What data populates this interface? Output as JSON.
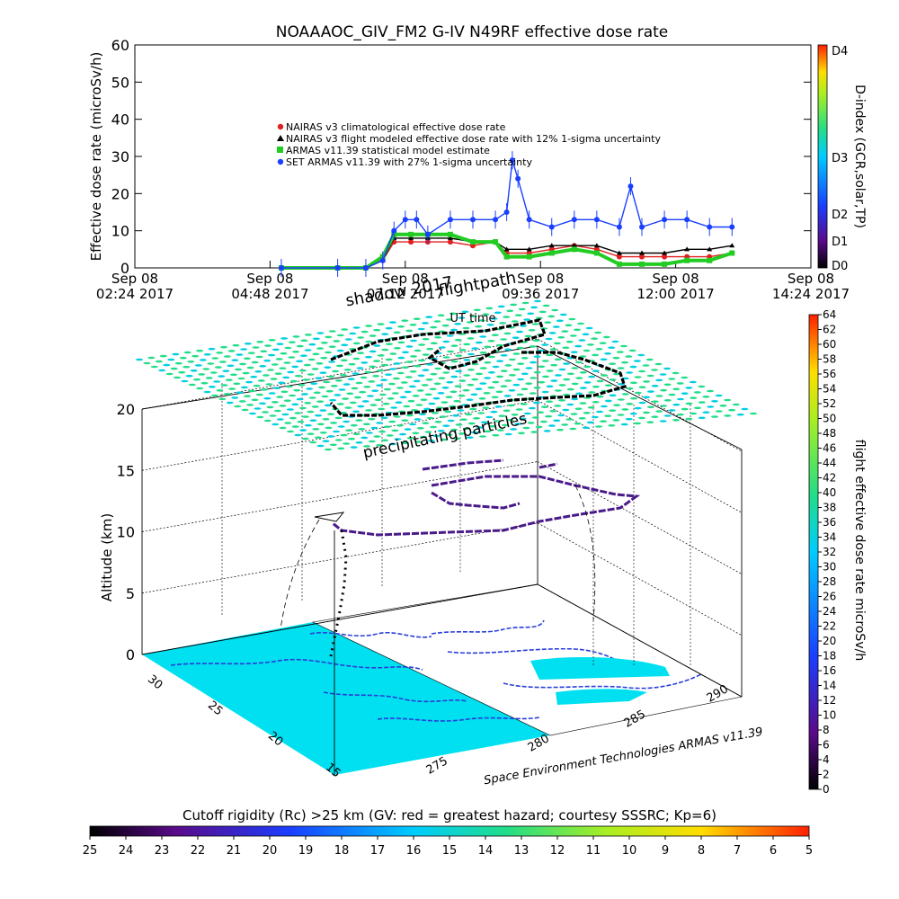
{
  "top_chart": {
    "title": "NOAAAOC_GIV_FM2 G-IV    N49RF  effective dose rate",
    "ylabel": "Effective dose rate (microSv/h)",
    "yticks": [
      "0",
      "10",
      "20",
      "30",
      "40",
      "50",
      "60"
    ],
    "ylim": [
      0,
      60
    ],
    "xticks": [
      {
        "line1": "Sep 08",
        "line2": "02:24 2017"
      },
      {
        "line1": "Sep 08",
        "line2": "04:48 2017"
      },
      {
        "line1": "Sep 08",
        "line2": "07:12 2017"
      },
      {
        "line1": "Sep 08",
        "line2": "09:36 2017"
      },
      {
        "line1": "Sep 08",
        "line2": "12:00 2017"
      },
      {
        "line1": "Sep 08",
        "line2": "14:24 2017"
      }
    ],
    "xlim_hours": [
      2.4,
      14.4
    ],
    "legend": [
      {
        "label": "NAIRAS v3 climatological effective dose rate",
        "color": "#e02020",
        "marker": "circle"
      },
      {
        "label": "NAIRAS v3 flight modeled effective dose rate with 12% 1-sigma uncertainty",
        "color": "#000000",
        "marker": "triangle"
      },
      {
        "label": "ARMAS v11.39 statistical model estimate",
        "color": "#22cc22",
        "marker": "square"
      },
      {
        "label": "SET ARMAS v11.39 with 27% 1-sigma uncertainty",
        "color": "#1a3fff",
        "marker": "circle"
      }
    ],
    "right_colorbar": {
      "label": "D-index (GCR,solar,TP)",
      "ticks": [
        "D4",
        "D3",
        "D2",
        "D1",
        "D0"
      ]
    },
    "annotations": {
      "shadow": "shadow 2017",
      "flightpath": "flightpath",
      "ut_time": "UT time"
    }
  },
  "chart_data": [
    {
      "type": "scatter",
      "title": "NOAAAOC_GIV_FM2 G-IV    N49RF  effective dose rate",
      "xlabel": "",
      "ylabel": "Effective dose rate (microSv/h)",
      "x_unit": "UT hours on Sep 08 2017",
      "ylim": [
        0,
        60
      ],
      "series": [
        {
          "name": "NAIRAS v3 climatological effective dose rate",
          "x": [
            5.0,
            6.0,
            6.5,
            6.8,
            7.0,
            7.3,
            7.6,
            8.0,
            8.4,
            8.8,
            9.0,
            9.4,
            9.8,
            10.2,
            10.6,
            11.0,
            11.4,
            11.8,
            12.2,
            12.6,
            13.0
          ],
          "y": [
            0,
            0,
            0,
            2,
            7,
            7,
            7,
            7,
            6,
            7,
            4,
            4,
            5,
            6,
            5,
            3,
            3,
            3,
            3,
            3,
            4
          ]
        },
        {
          "name": "NAIRAS v3 flight modeled effective dose rate with 12% 1-sigma uncertainty",
          "x": [
            5.0,
            6.0,
            6.5,
            6.8,
            7.0,
            7.3,
            7.6,
            8.0,
            8.4,
            8.8,
            9.0,
            9.4,
            9.8,
            10.2,
            10.6,
            11.0,
            11.4,
            11.8,
            12.2,
            12.6,
            13.0
          ],
          "y": [
            0,
            0,
            0,
            2,
            8,
            8,
            8,
            8,
            7,
            7,
            5,
            5,
            6,
            6,
            6,
            4,
            4,
            4,
            5,
            5,
            6
          ]
        },
        {
          "name": "ARMAS v11.39 statistical model estimate",
          "x": [
            5.0,
            6.0,
            6.5,
            6.8,
            7.0,
            7.3,
            7.6,
            8.0,
            8.4,
            8.8,
            9.0,
            9.4,
            9.8,
            10.2,
            10.6,
            11.0,
            11.4,
            11.8,
            12.2,
            12.6,
            13.0
          ],
          "y": [
            0,
            0,
            0,
            3,
            9,
            9,
            9,
            9,
            7,
            7,
            3,
            3,
            4,
            5,
            4,
            1,
            1,
            1,
            2,
            2,
            4
          ]
        },
        {
          "name": "SET ARMAS v11.39 with 27% 1-sigma uncertainty",
          "x": [
            5.0,
            6.0,
            6.5,
            6.8,
            7.0,
            7.2,
            7.4,
            7.6,
            8.0,
            8.4,
            8.8,
            9.0,
            9.1,
            9.2,
            9.4,
            9.8,
            10.2,
            10.6,
            11.0,
            11.2,
            11.4,
            11.8,
            12.2,
            12.6,
            13.0
          ],
          "y": [
            0,
            0,
            0,
            2,
            10,
            13,
            13,
            9,
            13,
            13,
            13,
            15,
            29,
            24,
            13,
            11,
            13,
            13,
            11,
            22,
            11,
            13,
            13,
            11,
            11
          ]
        }
      ]
    },
    {
      "type": "scatter",
      "title": "",
      "zlabel": "Altitude (km)",
      "zticks": [
        "0",
        "5",
        "10",
        "15",
        "20"
      ],
      "zlim": [
        0,
        20
      ],
      "lat_ticks": [
        "30",
        "25",
        "20",
        "15"
      ],
      "lon_ticks": [
        "275",
        "280",
        "285",
        "290"
      ],
      "series": [
        {
          "name": "flight track",
          "altitude_km": [
            0,
            4,
            8,
            11,
            12,
            12,
            12,
            12,
            12,
            12,
            0
          ]
        }
      ],
      "colorbar": {
        "label": "flight effective dose rate microSv/h",
        "ticks": [
          "0",
          "2",
          "4",
          "6",
          "8",
          "10",
          "12",
          "14",
          "16",
          "18",
          "20",
          "22",
          "24",
          "26",
          "28",
          "30",
          "32",
          "34",
          "36",
          "38",
          "40",
          "42",
          "44",
          "46",
          "48",
          "50",
          "52",
          "54",
          "56",
          "58",
          "60",
          "62",
          "64"
        ]
      }
    }
  ],
  "three_d": {
    "zlabel": "Altitude (km)",
    "zticks": [
      "0",
      "5",
      "10",
      "15",
      "20"
    ],
    "lat_ticks": [
      "30",
      "25",
      "20",
      "15"
    ],
    "lon_ticks": [
      "275",
      "280",
      "285",
      "290"
    ],
    "precip_label": "precipitating particles",
    "credit": "Space Environment Technologies ARMAS v11.39",
    "colorbar_label": "flight effective dose rate microSv/h",
    "colorbar_ticks": [
      "0",
      "2",
      "4",
      "6",
      "8",
      "10",
      "12",
      "14",
      "16",
      "18",
      "20",
      "22",
      "24",
      "26",
      "28",
      "30",
      "32",
      "34",
      "36",
      "38",
      "40",
      "42",
      "44",
      "46",
      "48",
      "50",
      "52",
      "54",
      "56",
      "58",
      "60",
      "62",
      "64"
    ]
  },
  "bottom_bar": {
    "title": "Cutoff rigidity (Rc) >25 km (GV: red = greatest hazard; courtesy SSSRC; Kp=6)",
    "ticks": [
      "25",
      "24",
      "23",
      "22",
      "21",
      "20",
      "19",
      "18",
      "17",
      "16",
      "15",
      "14",
      "13",
      "12",
      "11",
      "10",
      "9",
      "8",
      "7",
      "6",
      "5"
    ]
  },
  "colors": {
    "grid_green": "#22dd88",
    "map_cyan": "#00e0f0",
    "track_purple": "#4a1a8a",
    "track_black": "#000000"
  }
}
